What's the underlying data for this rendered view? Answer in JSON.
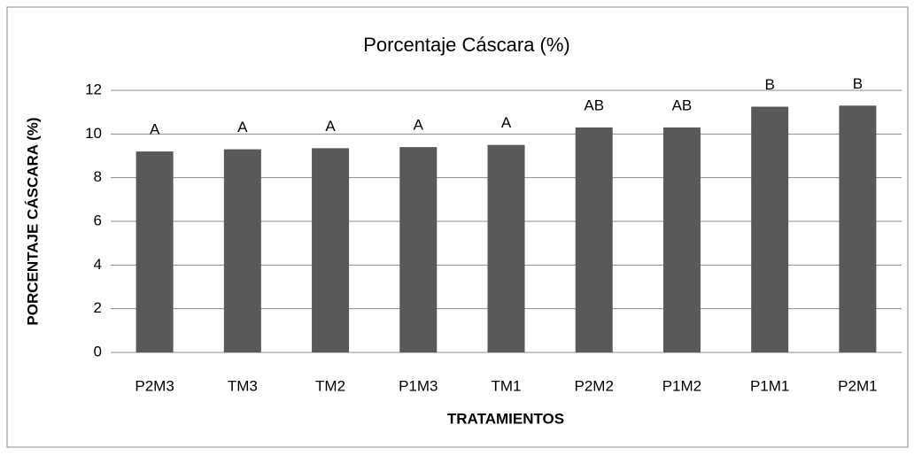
{
  "chart_data": {
    "type": "bar",
    "title": "Porcentaje Cáscara (%)",
    "x_label": "TRATAMIENTOS",
    "y_label": "PORCENTAJE CÁSCARA (%)",
    "categories": [
      "P2M3",
      "TM3",
      "TM2",
      "P1M3",
      "TM1",
      "P2M2",
      "P1M2",
      "P1M1",
      "P2M1"
    ],
    "values": [
      9.2,
      9.3,
      9.35,
      9.4,
      9.5,
      10.3,
      10.3,
      11.25,
      11.3
    ],
    "annotations": [
      "A",
      "A",
      "A",
      "A",
      "A",
      "AB",
      "AB",
      "B",
      "B"
    ],
    "color": "#595959",
    "ylim": [
      0,
      12
    ],
    "yticks": [
      0,
      2,
      4,
      6,
      8,
      10,
      12
    ],
    "grid": true
  }
}
